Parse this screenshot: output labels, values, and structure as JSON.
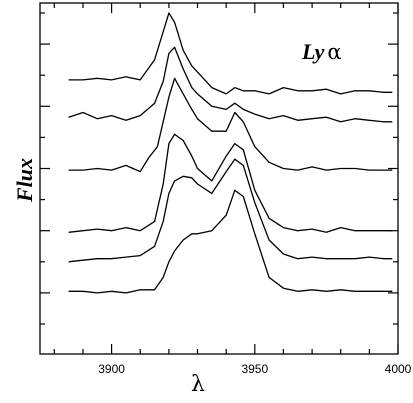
{
  "chart_data": {
    "type": "line",
    "xlabel": "λ",
    "ylabel": "Flux",
    "annotation": {
      "text": "Ly",
      "greek": "α"
    },
    "xlim": [
      3875,
      4000
    ],
    "ylim": [
      0,
      10
    ],
    "x_ticks": [
      3900,
      3950,
      4000
    ],
    "x_minor_step": 10,
    "y_major_ticks": [
      1,
      3,
      5,
      7,
      9
    ],
    "y_minor_ticks": [
      0,
      2,
      4,
      6,
      8,
      10
    ],
    "grid": false,
    "series": [
      {
        "x": [
          3885,
          3890,
          3895,
          3900,
          3905,
          3910,
          3915,
          3918,
          3920,
          3922,
          3925,
          3928,
          3930,
          3935,
          3940,
          3943,
          3946,
          3950,
          3955,
          3960,
          3965,
          3970,
          3975,
          3980,
          3985,
          3990,
          3995,
          3998
        ],
        "y": [
          7.85,
          7.85,
          7.9,
          7.85,
          7.95,
          7.85,
          8.5,
          9.4,
          10.0,
          9.7,
          8.8,
          8.3,
          8.1,
          7.6,
          7.4,
          7.6,
          7.5,
          7.5,
          7.4,
          7.6,
          7.5,
          7.5,
          7.55,
          7.4,
          7.5,
          7.5,
          7.45,
          7.45
        ]
      },
      {
        "x": [
          3885,
          3890,
          3895,
          3900,
          3905,
          3910,
          3915,
          3918,
          3920,
          3922,
          3925,
          3928,
          3930,
          3935,
          3940,
          3943,
          3946,
          3950,
          3955,
          3960,
          3965,
          3970,
          3975,
          3980,
          3985,
          3990,
          3995,
          3998
        ],
        "y": [
          6.65,
          6.8,
          6.6,
          6.7,
          6.55,
          6.7,
          7.1,
          7.8,
          8.7,
          8.9,
          8.2,
          7.6,
          7.4,
          7.0,
          6.9,
          7.1,
          6.9,
          6.75,
          6.6,
          6.7,
          6.55,
          6.6,
          6.65,
          6.5,
          6.6,
          6.55,
          6.5,
          6.5
        ]
      },
      {
        "x": [
          3885,
          3890,
          3895,
          3900,
          3905,
          3910,
          3913,
          3916,
          3920,
          3922,
          3925,
          3928,
          3930,
          3935,
          3940,
          3943,
          3946,
          3950,
          3955,
          3960,
          3965,
          3970,
          3975,
          3980,
          3985,
          3990,
          3995,
          3998
        ],
        "y": [
          4.95,
          4.95,
          5.0,
          4.95,
          5.1,
          4.9,
          5.35,
          5.7,
          7.3,
          7.9,
          7.4,
          6.9,
          6.6,
          6.2,
          6.2,
          6.8,
          6.5,
          5.7,
          5.2,
          5.0,
          4.95,
          5.05,
          4.95,
          5.0,
          5.0,
          4.95,
          4.95,
          4.95
        ]
      },
      {
        "x": [
          3885,
          3890,
          3895,
          3900,
          3905,
          3910,
          3915,
          3918,
          3920,
          3922,
          3925,
          3928,
          3930,
          3935,
          3940,
          3943,
          3946,
          3950,
          3955,
          3960,
          3965,
          3970,
          3975,
          3980,
          3985,
          3990,
          3995,
          3998
        ],
        "y": [
          2.95,
          3.0,
          3.05,
          3.0,
          3.1,
          3.0,
          3.3,
          4.5,
          5.8,
          6.1,
          5.9,
          5.4,
          5.0,
          4.6,
          5.4,
          5.8,
          5.6,
          4.3,
          3.4,
          3.1,
          3.0,
          3.05,
          2.95,
          3.1,
          3.0,
          3.0,
          3.0,
          3.0
        ]
      },
      {
        "x": [
          3885,
          3890,
          3895,
          3900,
          3905,
          3910,
          3915,
          3918,
          3920,
          3922,
          3925,
          3928,
          3930,
          3935,
          3940,
          3943,
          3946,
          3950,
          3955,
          3960,
          3965,
          3970,
          3975,
          3980,
          3985,
          3990,
          3995,
          3998
        ],
        "y": [
          2.0,
          2.05,
          2.1,
          2.1,
          2.15,
          2.2,
          2.5,
          3.3,
          4.2,
          4.6,
          4.75,
          4.7,
          4.5,
          4.2,
          4.9,
          5.3,
          5.1,
          3.9,
          2.7,
          2.25,
          2.1,
          2.15,
          2.1,
          2.1,
          2.1,
          2.15,
          2.1,
          2.1
        ]
      },
      {
        "x": [
          3885,
          3890,
          3895,
          3900,
          3905,
          3910,
          3915,
          3918,
          3920,
          3922,
          3925,
          3928,
          3930,
          3935,
          3940,
          3943,
          3946,
          3950,
          3955,
          3960,
          3965,
          3970,
          3975,
          3980,
          3985,
          3990,
          3995,
          3998
        ],
        "y": [
          1.05,
          1.05,
          1.0,
          1.05,
          1.0,
          1.1,
          1.1,
          1.5,
          2.0,
          2.35,
          2.7,
          2.9,
          2.9,
          3.0,
          3.5,
          4.3,
          4.1,
          2.9,
          1.5,
          1.15,
          1.05,
          1.1,
          1.05,
          1.1,
          1.05,
          1.05,
          1.05,
          1.05
        ]
      }
    ]
  }
}
